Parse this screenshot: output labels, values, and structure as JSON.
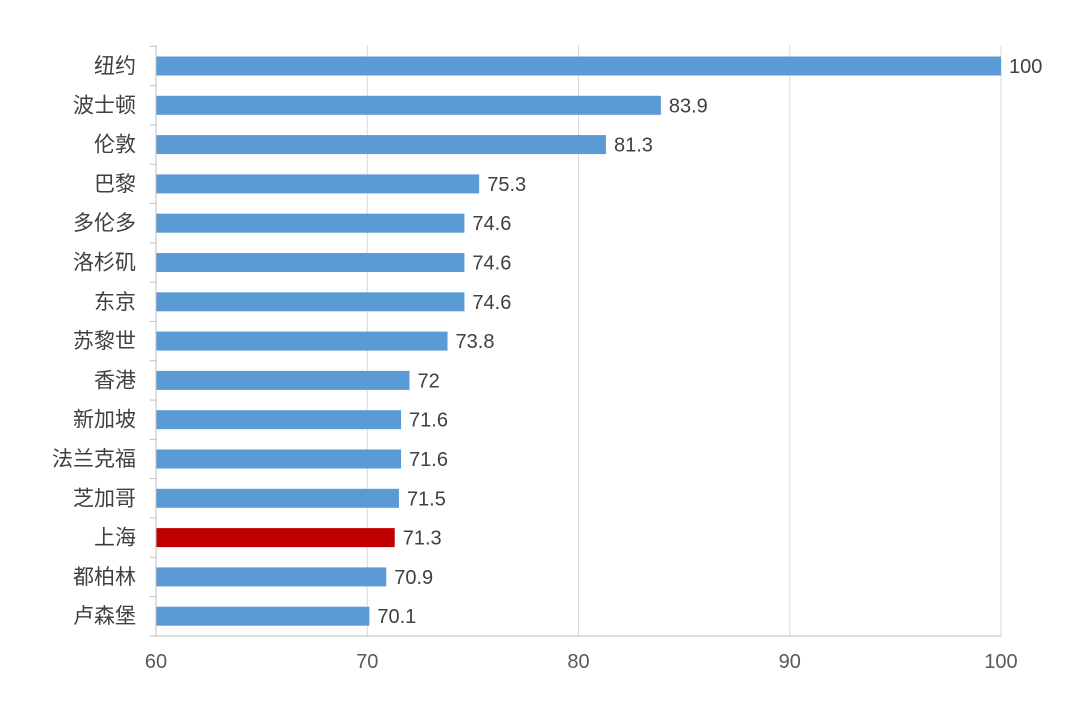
{
  "chart_data": {
    "type": "bar",
    "orientation": "horizontal",
    "categories": [
      "纽约",
      "波士顿",
      "伦敦",
      "巴黎",
      "多伦多",
      "洛杉矶",
      "东京",
      "苏黎世",
      "香港",
      "新加坡",
      "法兰克福",
      "芝加哥",
      "上海",
      "都柏林",
      "卢森堡"
    ],
    "values": [
      100,
      83.9,
      81.3,
      75.3,
      74.6,
      74.6,
      74.6,
      73.8,
      72,
      71.6,
      71.6,
      71.5,
      71.3,
      70.9,
      70.1
    ],
    "value_labels": [
      "100",
      "83.9",
      "81.3",
      "75.3",
      "74.6",
      "74.6",
      "74.6",
      "73.8",
      "72",
      "71.6",
      "71.6",
      "71.5",
      "71.3",
      "70.9",
      "70.1"
    ],
    "xlim": [
      60,
      100
    ],
    "xticks": [
      60,
      70,
      80,
      90,
      100
    ],
    "xtick_labels": [
      "60",
      "70",
      "80",
      "90",
      "100"
    ],
    "highlight_category": "上海",
    "grid": true,
    "legend": false,
    "colors": {
      "bar": "#5B9BD5",
      "highlight": "#C00000",
      "grid": "#D9D9D9",
      "axis": "#BFBFBF"
    }
  }
}
